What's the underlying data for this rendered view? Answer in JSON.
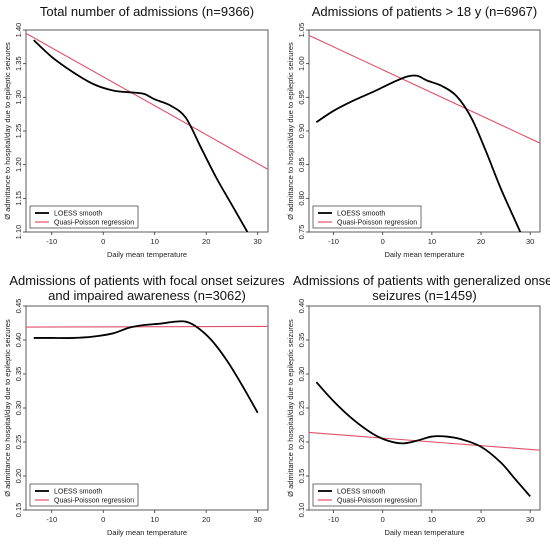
{
  "figure": {
    "shared_ylabel": "Ø admittance to hospital/day due to epileptic seizures",
    "shared_xlabel": "Daily mean temperature"
  },
  "chart_data": [
    {
      "type": "line",
      "title": [
        "Total number of admissions (n=9366)"
      ],
      "xlabel": "Daily mean temperature",
      "ylabel": "Ø admittance to hospital/day due to epileptic seizures",
      "xlim": [
        -15,
        32
      ],
      "ylim": [
        1.1,
        1.4
      ],
      "xticks": [
        "-10",
        "0",
        "10",
        "20",
        "30"
      ],
      "xtick_values": [
        -10,
        0,
        10,
        20,
        30
      ],
      "yticks": [
        "1.10",
        "1.15",
        "1.20",
        "1.25",
        "1.30",
        "1.35",
        "1.40"
      ],
      "ytick_values": [
        1.1,
        1.15,
        1.2,
        1.25,
        1.3,
        1.35,
        1.4
      ],
      "legend_position": "bottom-left",
      "colors": {
        "loess": "#000000",
        "qp": "#e0506a"
      },
      "series": [
        {
          "name": "LOESS smooth",
          "x": [
            -13.5,
            -10,
            -6,
            -2,
            2,
            6,
            8,
            10,
            13,
            16,
            19,
            22,
            25,
            28
          ],
          "y": [
            1.385,
            1.36,
            1.338,
            1.32,
            1.31,
            1.307,
            1.305,
            1.297,
            1.288,
            1.27,
            1.225,
            1.18,
            1.14,
            1.1
          ]
        },
        {
          "name": "Quasi-Poisson regression",
          "x": [
            -15,
            32
          ],
          "y": [
            1.395,
            1.193
          ]
        }
      ]
    },
    {
      "type": "line",
      "title": [
        "Admissions of patients > 18 y (n=6967)"
      ],
      "xlabel": "Daily mean temperature",
      "ylabel": "Ø admittance to hospital/day due to epileptic seizures",
      "xlim": [
        -15,
        32
      ],
      "ylim": [
        0.75,
        1.05
      ],
      "xticks": [
        "-10",
        "0",
        "10",
        "20",
        "30"
      ],
      "xtick_values": [
        -10,
        0,
        10,
        20,
        30
      ],
      "yticks": [
        "0.75",
        "0.80",
        "0.85",
        "0.90",
        "0.95",
        "1.00",
        "1.05"
      ],
      "ytick_values": [
        0.75,
        0.8,
        0.85,
        0.9,
        0.95,
        1.0,
        1.05
      ],
      "legend_position": "bottom-left",
      "colors": {
        "loess": "#000000",
        "qp": "#e0506a"
      },
      "series": [
        {
          "name": "LOESS smooth",
          "x": [
            -13.5,
            -10,
            -6,
            -2,
            2,
            5,
            7,
            9,
            12,
            15,
            18,
            21,
            24,
            28
          ],
          "y": [
            0.913,
            0.93,
            0.945,
            0.958,
            0.972,
            0.981,
            0.982,
            0.975,
            0.967,
            0.952,
            0.92,
            0.87,
            0.815,
            0.75
          ]
        },
        {
          "name": "Quasi-Poisson regression",
          "x": [
            -15,
            32
          ],
          "y": [
            1.042,
            0.882
          ]
        }
      ]
    },
    {
      "type": "line",
      "title": [
        "Admissions of patients with focal onset seizures",
        "and impaired awareness (n=3062)"
      ],
      "xlabel": "Daily mean temperature",
      "ylabel": "Ø admittance to hospital/day due to epileptic seizures",
      "xlim": [
        -15,
        32
      ],
      "ylim": [
        0.15,
        0.45
      ],
      "xticks": [
        "-10",
        "0",
        "10",
        "20",
        "30"
      ],
      "xtick_values": [
        -10,
        0,
        10,
        20,
        30
      ],
      "yticks": [
        "0.15",
        "0.20",
        "0.25",
        "0.30",
        "0.35",
        "0.40",
        "0.45"
      ],
      "ytick_values": [
        0.15,
        0.2,
        0.25,
        0.3,
        0.35,
        0.4,
        0.45
      ],
      "legend_position": "bottom-left",
      "colors": {
        "loess": "#000000",
        "qp": "#e0506a"
      },
      "series": [
        {
          "name": "LOESS smooth",
          "x": [
            -13.5,
            -10,
            -6,
            -2,
            2,
            5,
            8,
            11,
            14,
            16,
            18,
            21,
            24,
            27,
            30
          ],
          "y": [
            0.403,
            0.403,
            0.403,
            0.405,
            0.41,
            0.418,
            0.422,
            0.424,
            0.427,
            0.427,
            0.42,
            0.4,
            0.37,
            0.333,
            0.293
          ]
        },
        {
          "name": "Quasi-Poisson regression",
          "x": [
            -15,
            32
          ],
          "y": [
            0.419,
            0.42
          ]
        }
      ]
    },
    {
      "type": "line",
      "title": [
        "Admissions of patients with  generalized onset",
        "seizures (n=1459)"
      ],
      "xlabel": "Daily mean temperature",
      "ylabel": "Ø admittance to hospital/day due to epileptic seizures",
      "xlim": [
        -15,
        32
      ],
      "ylim": [
        0.1,
        0.4
      ],
      "xticks": [
        "-10",
        "0",
        "10",
        "20",
        "30"
      ],
      "xtick_values": [
        -10,
        0,
        10,
        20,
        30
      ],
      "yticks": [
        "0.10",
        "0.15",
        "0.20",
        "0.25",
        "0.30",
        "0.35",
        "0.40"
      ],
      "ytick_values": [
        0.1,
        0.15,
        0.2,
        0.25,
        0.3,
        0.35,
        0.4
      ],
      "legend_position": "bottom-left",
      "colors": {
        "loess": "#000000",
        "qp": "#e0506a"
      },
      "series": [
        {
          "name": "LOESS smooth",
          "x": [
            -13.5,
            -10,
            -6,
            -2,
            1,
            4,
            7,
            10,
            13,
            16,
            20,
            24,
            27,
            30
          ],
          "y": [
            0.288,
            0.26,
            0.233,
            0.212,
            0.202,
            0.198,
            0.202,
            0.208,
            0.208,
            0.204,
            0.193,
            0.17,
            0.145,
            0.12
          ]
        },
        {
          "name": "Quasi-Poisson regression",
          "x": [
            -15,
            32
          ],
          "y": [
            0.214,
            0.188
          ]
        }
      ]
    }
  ]
}
